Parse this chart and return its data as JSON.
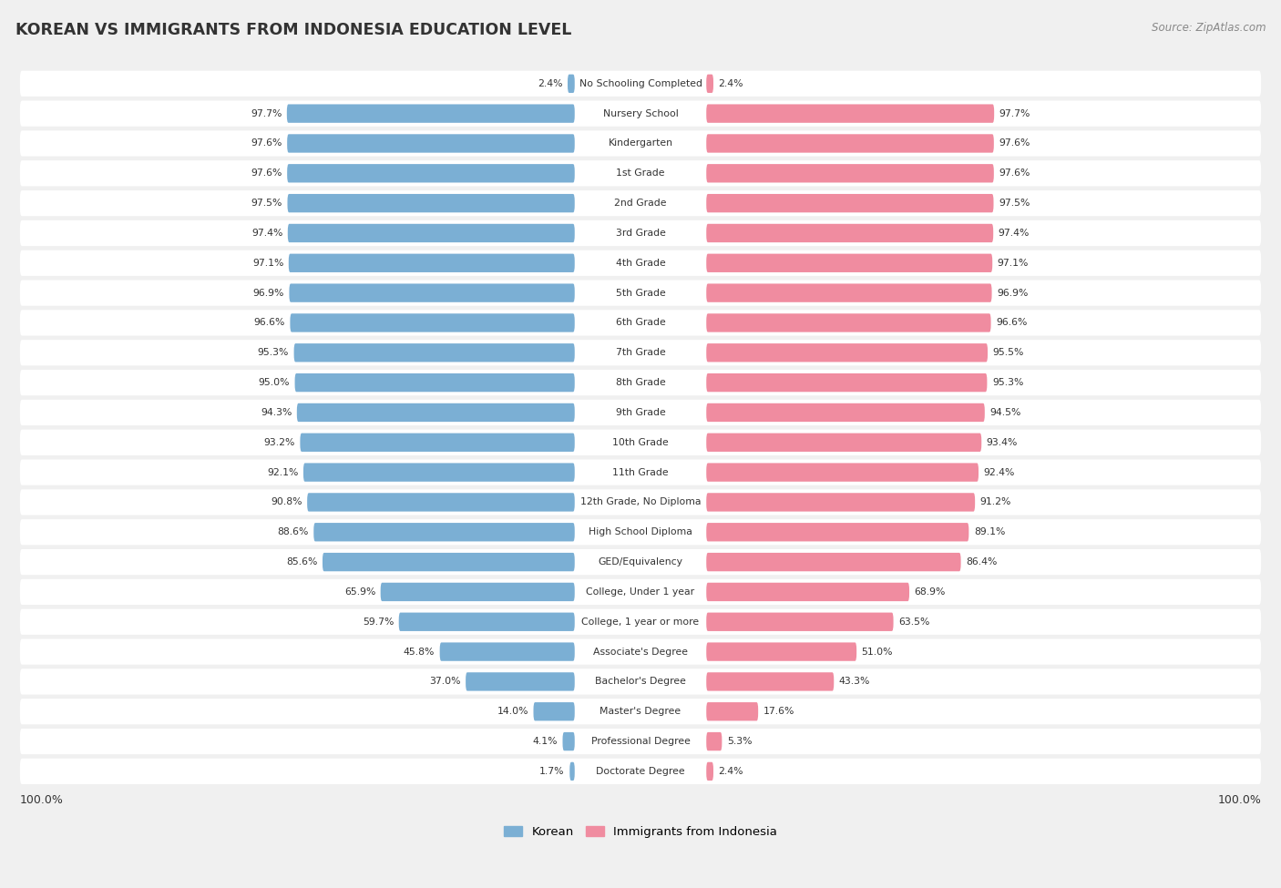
{
  "title": "KOREAN VS IMMIGRANTS FROM INDONESIA EDUCATION LEVEL",
  "source": "Source: ZipAtlas.com",
  "categories": [
    "No Schooling Completed",
    "Nursery School",
    "Kindergarten",
    "1st Grade",
    "2nd Grade",
    "3rd Grade",
    "4th Grade",
    "5th Grade",
    "6th Grade",
    "7th Grade",
    "8th Grade",
    "9th Grade",
    "10th Grade",
    "11th Grade",
    "12th Grade, No Diploma",
    "High School Diploma",
    "GED/Equivalency",
    "College, Under 1 year",
    "College, 1 year or more",
    "Associate's Degree",
    "Bachelor's Degree",
    "Master's Degree",
    "Professional Degree",
    "Doctorate Degree"
  ],
  "korean": [
    2.4,
    97.7,
    97.6,
    97.6,
    97.5,
    97.4,
    97.1,
    96.9,
    96.6,
    95.3,
    95.0,
    94.3,
    93.2,
    92.1,
    90.8,
    88.6,
    85.6,
    65.9,
    59.7,
    45.8,
    37.0,
    14.0,
    4.1,
    1.7
  ],
  "indonesia": [
    2.4,
    97.7,
    97.6,
    97.6,
    97.5,
    97.4,
    97.1,
    96.9,
    96.6,
    95.5,
    95.3,
    94.5,
    93.4,
    92.4,
    91.2,
    89.1,
    86.4,
    68.9,
    63.5,
    51.0,
    43.3,
    17.6,
    5.3,
    2.4
  ],
  "korean_color": "#7bafd4",
  "indonesia_color": "#f08ca0",
  "bg_color": "#f0f0f0",
  "bar_bg_color": "#ffffff",
  "label_color": "#333333",
  "title_color": "#333333",
  "legend_korean": "Korean",
  "legend_indonesia": "Immigrants from Indonesia",
  "axis_label_left": "100.0%",
  "axis_label_right": "100.0%"
}
